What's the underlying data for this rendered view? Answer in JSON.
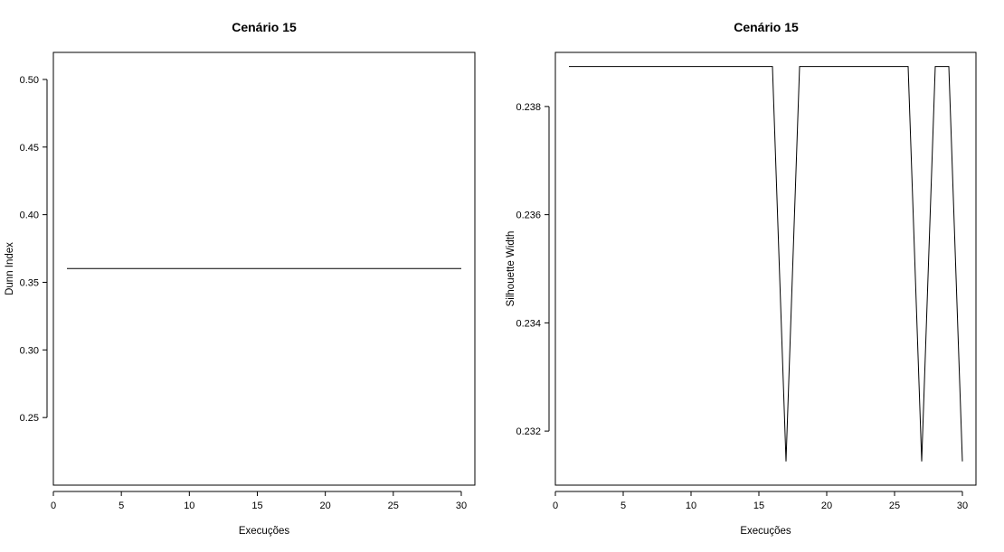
{
  "chart_data": [
    {
      "type": "line",
      "title": "Cenário 15",
      "xlabel": "Execuções",
      "ylabel": "Dunn Index",
      "xlim": [
        0,
        31
      ],
      "ylim": [
        0.2,
        0.52
      ],
      "x_ticks": [
        0,
        5,
        10,
        15,
        20,
        25,
        30
      ],
      "y_ticks": [
        0.25,
        0.3,
        0.35,
        0.4,
        0.45,
        0.5
      ],
      "y_tick_labels": [
        "0.25",
        "0.30",
        "0.35",
        "0.40",
        "0.45",
        "0.50"
      ],
      "grid": false,
      "legend": "none",
      "series": [
        {
          "x": [
            1,
            30
          ],
          "y": [
            0.3602,
            0.3602
          ]
        }
      ]
    },
    {
      "type": "line",
      "title": "Cenário 15",
      "xlabel": "Execuções",
      "ylabel": "Silhouette Width",
      "xlim": [
        0,
        31
      ],
      "ylim": [
        0.231,
        0.239
      ],
      "x_ticks": [
        0,
        5,
        10,
        15,
        20,
        25,
        30
      ],
      "y_ticks": [
        0.232,
        0.234,
        0.236,
        0.238
      ],
      "y_tick_labels": [
        "0.232",
        "0.234",
        "0.236",
        "0.238"
      ],
      "grid": false,
      "legend": "none",
      "series": [
        {
          "x": [
            1,
            16,
            17,
            18,
            26,
            27,
            28,
            29,
            30
          ],
          "y": [
            0.23874,
            0.23874,
            0.23144,
            0.23874,
            0.23874,
            0.23144,
            0.23874,
            0.23874,
            0.23144
          ]
        }
      ]
    }
  ]
}
